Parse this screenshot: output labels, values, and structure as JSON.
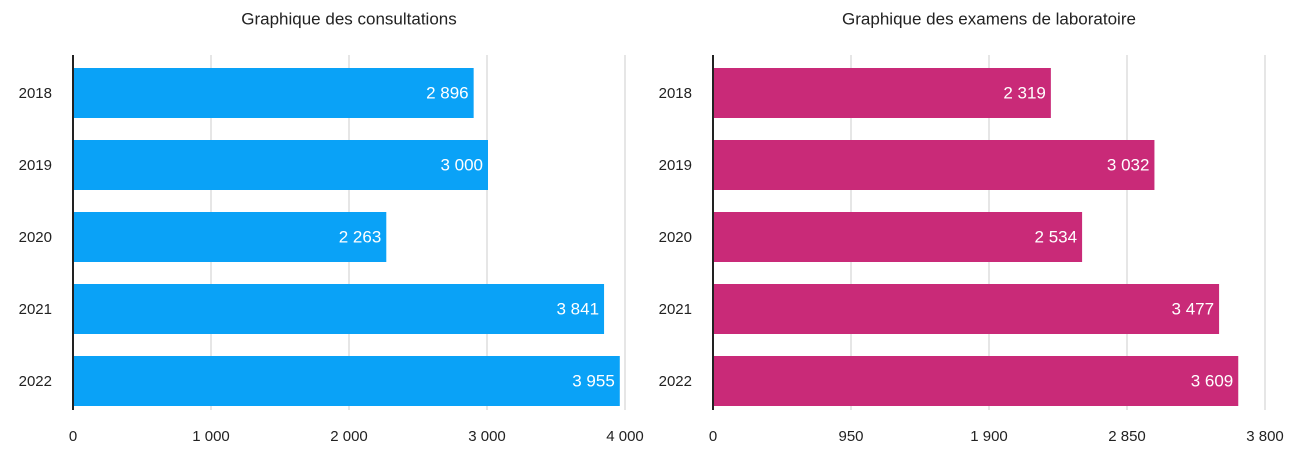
{
  "chart_data": [
    {
      "type": "bar",
      "orientation": "horizontal",
      "title": "Graphique des consultations",
      "categories": [
        "2018",
        "2019",
        "2020",
        "2021",
        "2022"
      ],
      "values": [
        2896,
        3000,
        2263,
        3841,
        3955
      ],
      "value_labels": [
        "2 896",
        "3 000",
        "2 263",
        "3 841",
        "3 955"
      ],
      "color": "#0aa2f7",
      "xlim": [
        0,
        4000
      ],
      "xticks": [
        0,
        {
          "value": 1000,
          "label": "1 000"
        },
        {
          "value": 2000,
          "label": "2 000"
        },
        {
          "value": 3000,
          "label": "3 000"
        },
        {
          "value": 4000,
          "label": "4 000"
        }
      ],
      "grid": true
    },
    {
      "type": "bar",
      "orientation": "horizontal",
      "title": "Graphique des examens de laboratoire",
      "categories": [
        "2018",
        "2019",
        "2020",
        "2021",
        "2022"
      ],
      "values": [
        2319,
        3032,
        2534,
        3477,
        3609
      ],
      "value_labels": [
        "2 319",
        "3 032",
        "2 534",
        "3 477",
        "3 609"
      ],
      "color": "#c92a78",
      "xlim": [
        0,
        3800
      ],
      "xticks": [
        0,
        950,
        {
          "value": 1900,
          "label": "1 900"
        },
        {
          "value": 2850,
          "label": "2 850"
        },
        {
          "value": 3800,
          "label": "3 800"
        }
      ],
      "grid": true
    }
  ]
}
